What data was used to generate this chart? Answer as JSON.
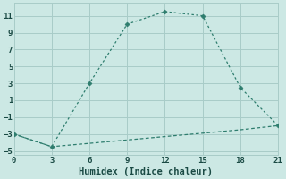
{
  "xlabel": "Humidex (Indice chaleur)",
  "background_color": "#cce8e4",
  "grid_color": "#a8ccc8",
  "line_color": "#2e7d6e",
  "line1_x": [
    0,
    3,
    6,
    9,
    12,
    15,
    18,
    21
  ],
  "line1_y": [
    -3,
    -4.5,
    3,
    10,
    11.5,
    11,
    2.5,
    -2
  ],
  "line2_x": [
    0,
    3,
    6,
    9,
    12,
    15,
    18,
    21
  ],
  "line2_y": [
    -3.0,
    -4.5,
    -4.1,
    -3.7,
    -3.3,
    -2.9,
    -2.5,
    -2.0
  ],
  "xlim": [
    0,
    21
  ],
  "ylim": [
    -5.5,
    12.5
  ],
  "xticks": [
    0,
    3,
    6,
    9,
    12,
    15,
    18,
    21
  ],
  "yticks": [
    -5,
    -3,
    -1,
    1,
    3,
    5,
    7,
    9,
    11
  ],
  "line1_marker_x": [
    0,
    3,
    6,
    9,
    12,
    15,
    18,
    21
  ],
  "line1_marker_y": [
    -3,
    -4.5,
    3,
    10,
    11.5,
    11,
    2.5,
    -2
  ],
  "tick_fontsize": 6.5,
  "xlabel_fontsize": 7.5
}
